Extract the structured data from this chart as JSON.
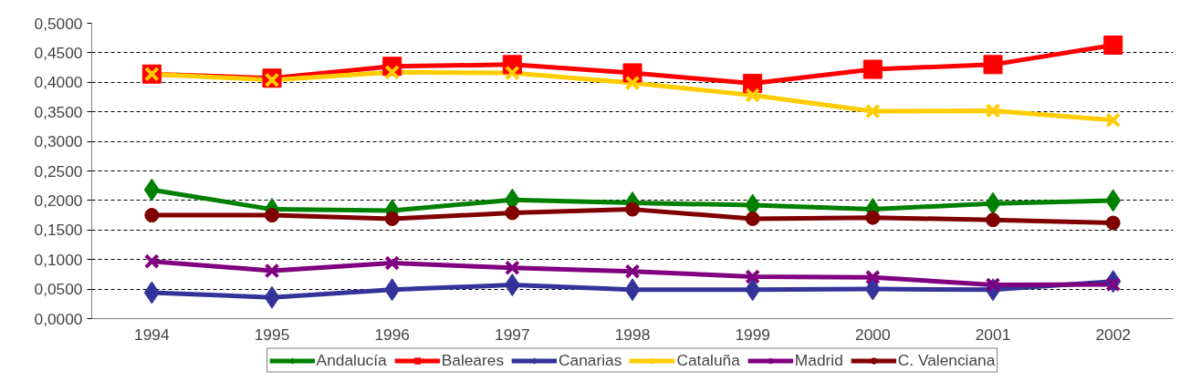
{
  "chart_data": {
    "type": "line",
    "categories": [
      "1994",
      "1995",
      "1996",
      "1997",
      "1998",
      "1999",
      "2000",
      "2001",
      "2002"
    ],
    "ylim": [
      0,
      0.5
    ],
    "yticks": [
      {
        "value": 0,
        "label": "0,0000"
      },
      {
        "value": 0.05,
        "label": "0,0500"
      },
      {
        "value": 0.1,
        "label": "0,1000"
      },
      {
        "value": 0.15,
        "label": "0,1500"
      },
      {
        "value": 0.2,
        "label": "0,2000"
      },
      {
        "value": 0.25,
        "label": "0,2500"
      },
      {
        "value": 0.3,
        "label": "0,3000"
      },
      {
        "value": 0.35,
        "label": "0,3500"
      },
      {
        "value": 0.4,
        "label": "0,4000"
      },
      {
        "value": 0.45,
        "label": "0,4500"
      },
      {
        "value": 0.5,
        "label": "0,5000"
      }
    ],
    "grid": "y",
    "legend": "bottom",
    "line_style": "solid",
    "series": [
      {
        "name": "Andalucía",
        "color": "#008000",
        "marker": "diamond",
        "values": [
          0.218,
          0.185,
          0.183,
          0.201,
          0.196,
          0.192,
          0.185,
          0.195,
          0.2
        ]
      },
      {
        "name": "Baleares",
        "color": "#ff0000",
        "marker": "square",
        "values": [
          0.414,
          0.407,
          0.427,
          0.43,
          0.416,
          0.398,
          0.422,
          0.43,
          0.463
        ]
      },
      {
        "name": "Canarias",
        "color": "#333399",
        "marker": "diamond",
        "values": [
          0.044,
          0.036,
          0.049,
          0.057,
          0.049,
          0.049,
          0.05,
          0.049,
          0.063
        ]
      },
      {
        "name": "Cataluña",
        "color": "#ffcc00",
        "marker": "cross",
        "values": [
          0.414,
          0.404,
          0.417,
          0.416,
          0.399,
          0.378,
          0.351,
          0.352,
          0.336
        ]
      },
      {
        "name": "Madrid",
        "color": "#800080",
        "marker": "cross",
        "values": [
          0.097,
          0.081,
          0.094,
          0.086,
          0.08,
          0.071,
          0.07,
          0.057,
          0.058
        ]
      },
      {
        "name": "C. Valenciana",
        "color": "#800000",
        "marker": "circle",
        "values": [
          0.175,
          0.175,
          0.169,
          0.179,
          0.185,
          0.169,
          0.171,
          0.167,
          0.162
        ]
      }
    ]
  }
}
